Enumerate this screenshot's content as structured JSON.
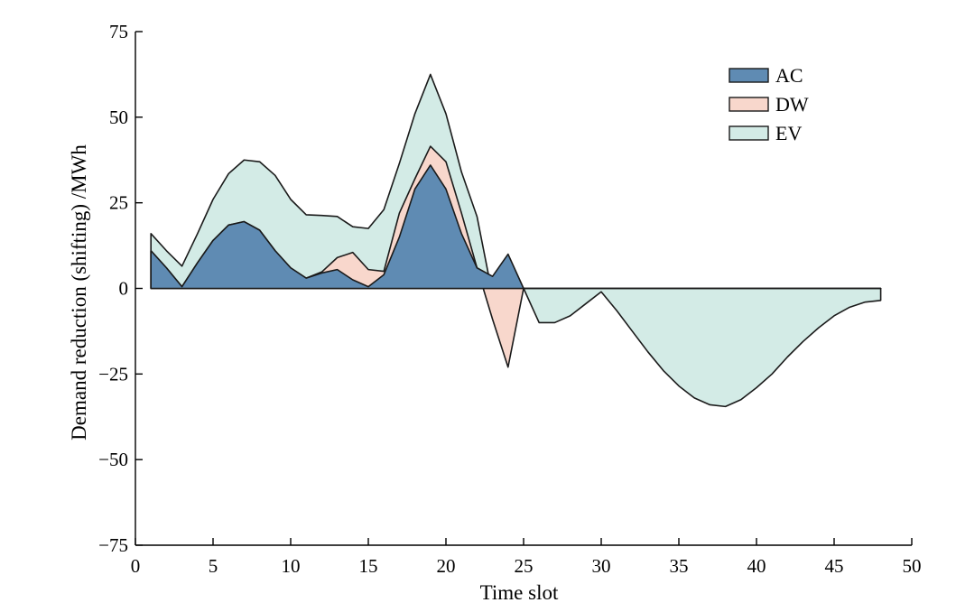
{
  "chart_data": {
    "type": "area",
    "title": "",
    "xlabel": "Time slot",
    "ylabel": "Demand reduction (shifting) /MWh",
    "xlim": [
      0,
      50
    ],
    "ylim": [
      -75,
      75
    ],
    "xticks": [
      0,
      5,
      10,
      15,
      20,
      25,
      30,
      35,
      40,
      45,
      50
    ],
    "yticks": [
      75,
      50,
      25,
      0,
      -25,
      -50,
      -75
    ],
    "xtick_labels": [
      "0",
      "5",
      "10",
      "15",
      "20",
      "25",
      "30",
      "35",
      "40",
      "45",
      "50"
    ],
    "ytick_labels": [
      "75",
      "50",
      "25",
      "0",
      "−25",
      "−50",
      "−75"
    ],
    "grid": false,
    "legend_position": "top-right",
    "x": [
      1,
      2,
      3,
      4,
      5,
      6,
      7,
      8,
      9,
      10,
      11,
      12,
      13,
      14,
      15,
      16,
      17,
      18,
      19,
      20,
      21,
      22,
      23,
      24,
      25,
      26,
      27,
      28,
      29,
      30,
      31,
      32,
      33,
      34,
      35,
      36,
      37,
      38,
      39,
      40,
      41,
      42,
      43,
      44,
      45,
      46,
      47,
      48
    ],
    "series": [
      {
        "name": "AC",
        "color": "#5f8bb3",
        "values": [
          11,
          6,
          0.5,
          7.5,
          14,
          18.5,
          19.5,
          17,
          11,
          6,
          3,
          4.5,
          5.5,
          2.5,
          0.5,
          4,
          15,
          29,
          36,
          29,
          16,
          6,
          3.5,
          10,
          0,
          0,
          0,
          0,
          0,
          0,
          0,
          0,
          0,
          0,
          0,
          0,
          0,
          0,
          0,
          0,
          0,
          0,
          0,
          0,
          0,
          0,
          0,
          0
        ]
      },
      {
        "name": "DW",
        "color": "#f8d7cc",
        "values": [
          0,
          0,
          0,
          0,
          0,
          0,
          0,
          0,
          0,
          0,
          0,
          0.3,
          3.5,
          8,
          5,
          1,
          7,
          3,
          5.5,
          8,
          6,
          0,
          -12.5,
          -33,
          0,
          0,
          0,
          0,
          0,
          0,
          0,
          0,
          0,
          0,
          0,
          0,
          0,
          0,
          0,
          0,
          0,
          0,
          0,
          0,
          0,
          0,
          0,
          0
        ]
      },
      {
        "name": "EV",
        "color": "#d3ebe6",
        "values": [
          5,
          5,
          6,
          8.5,
          12,
          15,
          18,
          20,
          22,
          20,
          18.5,
          16.5,
          12,
          7.5,
          12,
          18,
          14.5,
          19,
          21,
          14,
          12,
          15,
          7,
          5,
          0,
          -10,
          -10,
          -8,
          -4.5,
          -1,
          -6.5,
          -12.5,
          -18.5,
          -24,
          -28.5,
          -32,
          -34,
          -34.5,
          -32.5,
          -29,
          -25,
          -20,
          -15.5,
          -11.5,
          -8,
          -5.5,
          -4,
          -3.5
        ]
      }
    ]
  }
}
